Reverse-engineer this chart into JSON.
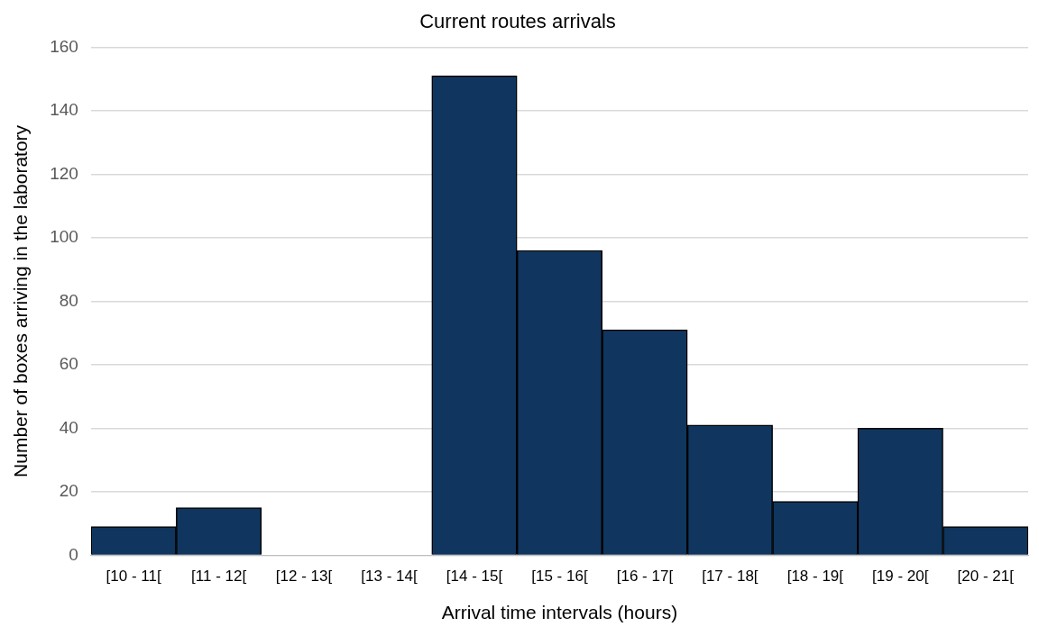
{
  "chart_data": {
    "type": "bar",
    "title": "Current routes arrivals",
    "xlabel": "Arrival time intervals (hours)",
    "ylabel": "Number of boxes arriving in the laboratory",
    "categories": [
      "[10 - 11[",
      "[11 - 12[",
      "[12 - 13[",
      "[13 - 14[",
      "[14 - 15[",
      "[15 - 16[",
      "[16 - 17[",
      "[17 - 18[",
      "[18 - 19[",
      "[19 - 20[",
      "[20 - 21["
    ],
    "values": [
      9,
      15,
      0,
      0,
      151,
      96,
      71,
      41,
      17,
      40,
      9
    ],
    "color": "#10365f",
    "ylim": [
      0,
      160
    ],
    "yticks": [
      0,
      20,
      40,
      60,
      80,
      100,
      120,
      140,
      160
    ],
    "grid": "y",
    "legend": false
  }
}
